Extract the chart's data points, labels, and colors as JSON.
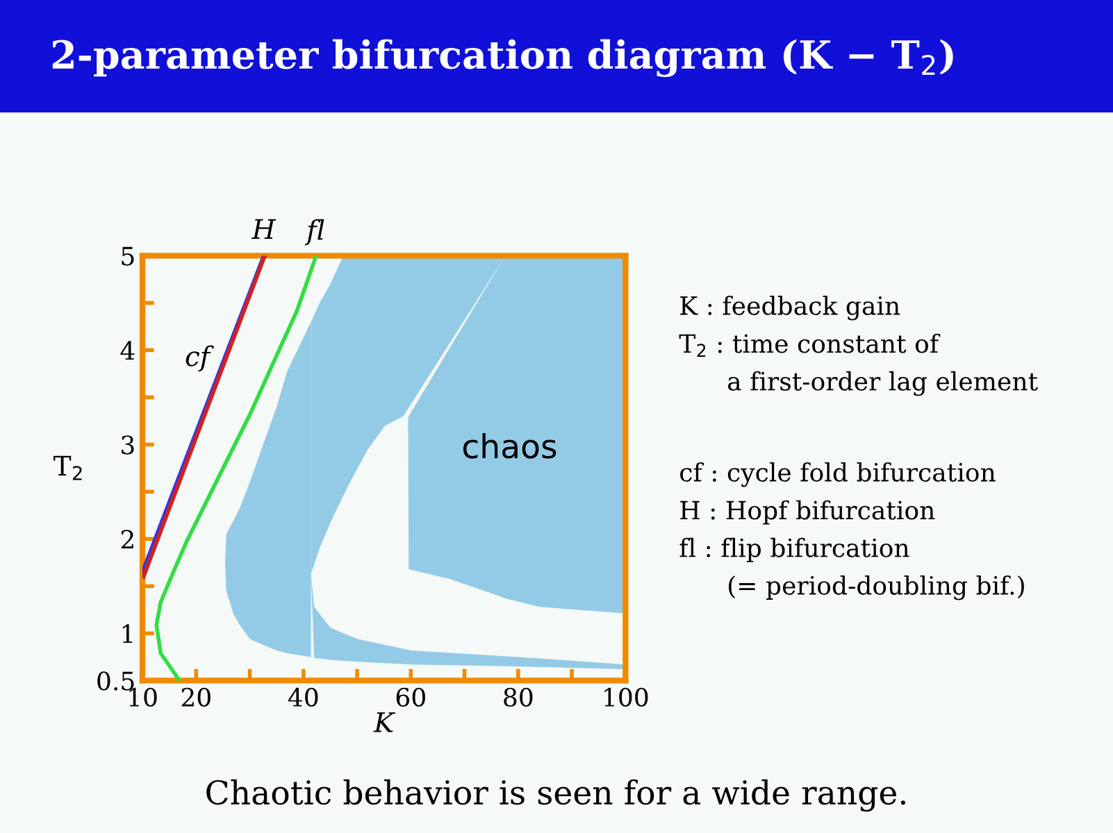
{
  "chart_data": {
    "type": "line",
    "title": "2-parameter bifurcation diagram (K − T$_{2}$)",
    "xlabel": "K",
    "ylabel": "T$_{2}$",
    "xlim": [
      10,
      100
    ],
    "ylim": [
      0.5,
      5
    ],
    "xticks": [
      10,
      20,
      {
        "value": 30,
        "label": null
      },
      40,
      {
        "value": 50,
        "label": null
      },
      60,
      {
        "value": 70,
        "label": null
      },
      80,
      {
        "value": 90,
        "label": null
      },
      100
    ],
    "yticks": [
      0.5,
      1,
      {
        "value": 1.5,
        "label": null
      },
      2,
      {
        "value": 2.5,
        "label": null
      },
      3,
      {
        "value": 3.5,
        "label": null
      },
      4,
      {
        "value": 4.5,
        "label": null
      },
      5
    ],
    "grid": false,
    "legend": false,
    "marker": "none",
    "line_style": "solid",
    "series": [
      {
        "type": "area",
        "color": "#93cbe6",
        "x": [
          25.4,
          25.6,
          27,
          28,
          30,
          32.8,
          35,
          37,
          41.4,
          41.4,
          37,
          35,
          32.8,
          30,
          28,
          27,
          25.6
        ],
        "values": [
          1.75,
          2.05,
          2.2,
          2.31,
          2.6,
          3.05,
          3.4,
          3.78,
          4.3,
          0.75,
          0.79,
          0.82,
          0.87,
          0.94,
          1.1,
          1.2,
          1.45
        ]
      },
      {
        "type": "area",
        "color": "#93cbe6",
        "x": [
          41.4,
          42,
          45,
          50,
          60,
          80,
          100,
          100,
          80,
          60,
          50,
          45,
          42
        ],
        "values": [
          1.63,
          1.28,
          1.06,
          0.94,
          0.82,
          0.75,
          0.67,
          0.62,
          0.65,
          0.67,
          0.7,
          0.72,
          0.74
        ]
      },
      {
        "type": "area",
        "color": "#93cbe6",
        "x": [
          41.4,
          43,
          45,
          47.4,
          77.6,
          58.6,
          55.2,
          52,
          48.3,
          45,
          43,
          41.4
        ],
        "values": [
          4.3,
          4.5,
          4.7,
          5,
          5,
          3.3,
          3.2,
          2.95,
          2.56,
          2.17,
          1.9,
          1.63
        ]
      },
      {
        "type": "area",
        "color": "#93cbe6",
        "x": [
          59.5,
          67,
          75.8,
          77.6,
          100,
          100,
          84,
          77.6,
          75.8,
          67,
          59.6
        ],
        "values": [
          3.29,
          4.0,
          4.83,
          5,
          5,
          1.21,
          1.28,
          1.37,
          1.41,
          1.58,
          1.68
        ]
      },
      {
        "name": "H",
        "color": "#3838d8",
        "x": [
          10,
          32.6
        ],
        "values": [
          1.65,
          5
        ]
      },
      {
        "name": "cf",
        "color": "#d42020",
        "x": [
          10.2,
          32.8
        ],
        "values": [
          1.6,
          5
        ]
      },
      {
        "name": "fl",
        "color": "#33dd44",
        "x": [
          16.9,
          13.4,
          12.6,
          13.4,
          15.6,
          18.2,
          21.6,
          25.9,
          30.2,
          34.5,
          38.8,
          42.3
        ],
        "values": [
          0.5,
          0.79,
          1.09,
          1.33,
          1.63,
          1.97,
          2.36,
          2.85,
          3.34,
          3.88,
          4.42,
          4.99
        ]
      }
    ],
    "annotations": [
      "chaos",
      "K : feedback gain\nT$_{2}$ : time constant of\n      a first-order lag element",
      "cf : cycle fold bifurcation\nH : Hopf bifurcation\nfl : flip bifurcation\n      (= period-doubling bif.)",
      "Chaotic behavior is seen for a wide range."
    ]
  }
}
